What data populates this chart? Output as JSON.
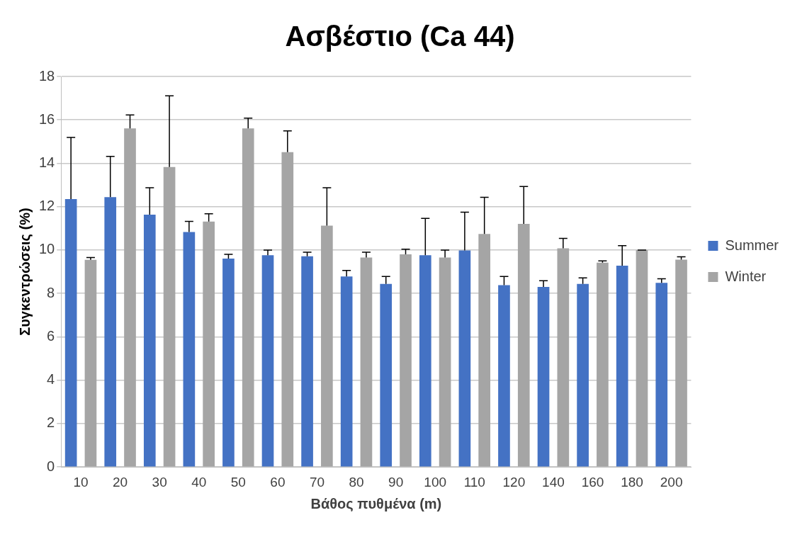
{
  "chart_data": {
    "type": "bar",
    "title": "Ασβέστιο (Ca 44)",
    "xlabel": "Βάθος πυθμένα (m)",
    "ylabel": "Συγκεντρώσεις (%)",
    "categories": [
      "10",
      "20",
      "30",
      "40",
      "50",
      "60",
      "70",
      "80",
      "90",
      "100",
      "110",
      "120",
      "140",
      "160",
      "180",
      "200"
    ],
    "series": [
      {
        "name": "Summer",
        "color": "#4472c4",
        "values": [
          12.35,
          12.44,
          11.63,
          10.83,
          9.61,
          9.76,
          9.71,
          8.78,
          8.44,
          9.76,
          9.98,
          8.38,
          8.3,
          8.44,
          9.28,
          8.49
        ],
        "errors": [
          [
            12.35,
            15.19
          ],
          [
            12.44,
            14.32
          ],
          [
            11.63,
            12.87
          ],
          [
            10.83,
            11.32
          ],
          [
            9.61,
            9.8
          ],
          [
            9.76,
            10.0
          ],
          [
            9.71,
            9.9
          ],
          [
            8.78,
            9.06
          ],
          [
            8.44,
            8.78
          ],
          [
            9.76,
            11.46
          ],
          [
            9.98,
            11.75
          ],
          [
            8.38,
            8.78
          ],
          [
            8.3,
            8.59
          ],
          [
            8.44,
            8.72
          ],
          [
            9.28,
            10.2
          ],
          [
            8.49,
            8.68
          ]
        ]
      },
      {
        "name": "Winter",
        "color": "#a5a5a5",
        "values": [
          9.55,
          15.61,
          13.83,
          11.31,
          15.61,
          14.51,
          11.13,
          9.66,
          9.8,
          9.66,
          10.74,
          11.21,
          10.08,
          9.42,
          10.0,
          9.56
        ],
        "errors": [
          [
            9.55,
            9.66
          ],
          [
            15.61,
            16.23
          ],
          [
            13.83,
            17.11
          ],
          [
            11.31,
            11.67
          ],
          [
            15.61,
            16.08
          ],
          [
            14.51,
            15.49
          ],
          [
            11.13,
            12.87
          ],
          [
            9.66,
            9.9
          ],
          [
            9.8,
            10.04
          ],
          [
            9.66,
            10.0
          ],
          [
            10.74,
            12.43
          ],
          [
            11.21,
            12.93
          ],
          [
            10.08,
            10.54
          ],
          [
            9.42,
            9.5
          ],
          [
            10.0,
            10.0
          ],
          [
            9.56,
            9.69
          ]
        ]
      }
    ],
    "ylim": [
      0,
      18
    ],
    "yticks": [
      0,
      2,
      4,
      6,
      8,
      10,
      12,
      14,
      16,
      18
    ],
    "grid": "y",
    "legend": "right"
  }
}
